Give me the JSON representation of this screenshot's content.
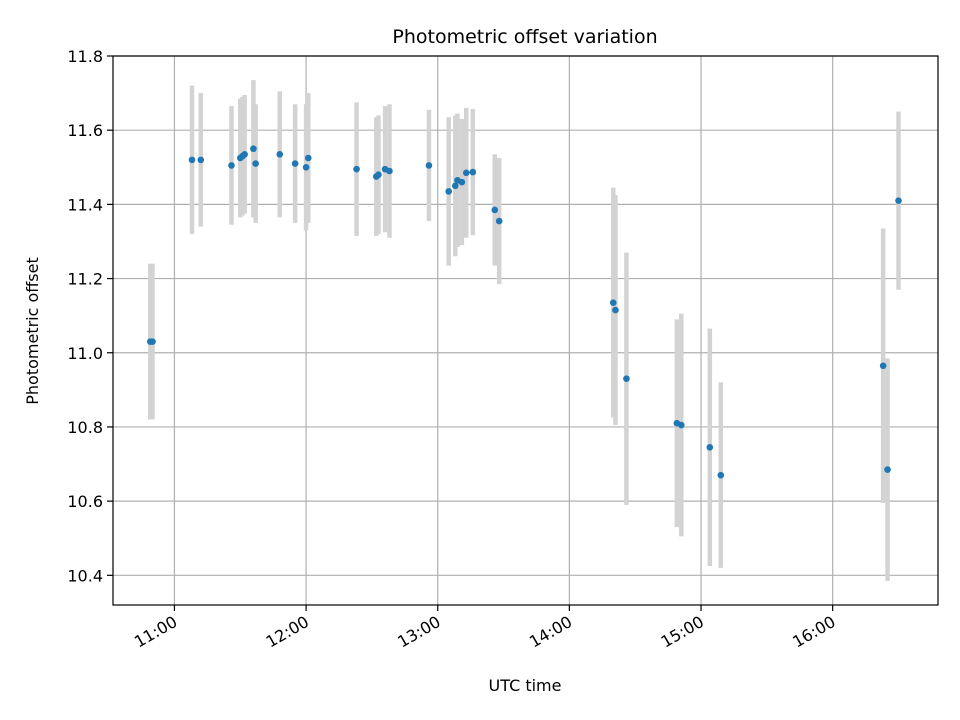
{
  "chart_data": {
    "type": "scatter",
    "title": "Photometric offset variation",
    "xlabel": "UTC time",
    "ylabel": "Photometric offset",
    "x_ticks": [
      "11:00",
      "12:00",
      "13:00",
      "14:00",
      "15:00",
      "16:00"
    ],
    "y_ticks": [
      "10.4",
      "10.6",
      "10.8",
      "11.0",
      "11.2",
      "11.4",
      "11.6",
      "11.8"
    ],
    "xlim": [
      "10:32",
      "16:48"
    ],
    "ylim": [
      10.32,
      11.8
    ],
    "grid": true,
    "legend": "none",
    "colors": {
      "point": "#1f77b4",
      "errorbar": "#d3d3d3",
      "grid": "#b0b0b0"
    },
    "series": [
      {
        "points": [
          {
            "x": "10:49",
            "y": 11.03,
            "err": 0.21
          },
          {
            "x": "10:50",
            "y": 11.03,
            "err": 0.21
          },
          {
            "x": "11:08",
            "y": 11.52,
            "err": 0.2
          },
          {
            "x": "11:12",
            "y": 11.52,
            "err": 0.18
          },
          {
            "x": "11:26",
            "y": 11.505,
            "err": 0.16
          },
          {
            "x": "11:30",
            "y": 11.525,
            "err": 0.16
          },
          {
            "x": "11:31",
            "y": 11.53,
            "err": 0.16
          },
          {
            "x": "11:32",
            "y": 11.535,
            "err": 0.16
          },
          {
            "x": "11:36",
            "y": 11.55,
            "err": 0.185
          },
          {
            "x": "11:37",
            "y": 11.51,
            "err": 0.16
          },
          {
            "x": "11:48",
            "y": 11.535,
            "err": 0.17
          },
          {
            "x": "11:55",
            "y": 11.51,
            "err": 0.16
          },
          {
            "x": "12:00",
            "y": 11.5,
            "err": 0.17
          },
          {
            "x": "12:01",
            "y": 11.525,
            "err": 0.175
          },
          {
            "x": "12:23",
            "y": 11.495,
            "err": 0.18
          },
          {
            "x": "12:32",
            "y": 11.475,
            "err": 0.16
          },
          {
            "x": "12:33",
            "y": 11.48,
            "err": 0.16
          },
          {
            "x": "12:36",
            "y": 11.495,
            "err": 0.17
          },
          {
            "x": "12:38",
            "y": 11.49,
            "err": 0.18
          },
          {
            "x": "12:56",
            "y": 11.505,
            "err": 0.15
          },
          {
            "x": "13:05",
            "y": 11.435,
            "err": 0.2
          },
          {
            "x": "13:08",
            "y": 11.45,
            "err": 0.19
          },
          {
            "x": "13:09",
            "y": 11.465,
            "err": 0.18
          },
          {
            "x": "13:11",
            "y": 11.46,
            "err": 0.17
          },
          {
            "x": "13:13",
            "y": 11.485,
            "err": 0.175
          },
          {
            "x": "13:16",
            "y": 11.487,
            "err": 0.17
          },
          {
            "x": "13:26",
            "y": 11.385,
            "err": 0.15
          },
          {
            "x": "13:28",
            "y": 11.355,
            "err": 0.17
          },
          {
            "x": "14:20",
            "y": 11.135,
            "err": 0.31
          },
          {
            "x": "14:21",
            "y": 11.115,
            "err": 0.31
          },
          {
            "x": "14:26",
            "y": 10.93,
            "err": 0.34
          },
          {
            "x": "14:49",
            "y": 10.81,
            "err": 0.28
          },
          {
            "x": "14:51",
            "y": 10.805,
            "err": 0.3
          },
          {
            "x": "15:04",
            "y": 10.745,
            "err": 0.32
          },
          {
            "x": "15:09",
            "y": 10.67,
            "err": 0.25
          },
          {
            "x": "16:23",
            "y": 10.965,
            "err": 0.37
          },
          {
            "x": "16:25",
            "y": 10.685,
            "err": 0.3
          },
          {
            "x": "16:30",
            "y": 11.41,
            "err": 0.24
          }
        ]
      }
    ]
  }
}
